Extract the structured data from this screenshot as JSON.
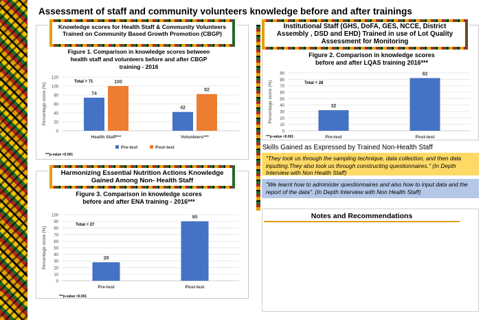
{
  "page": {
    "title": "Assessment of staff and community volunteers knowledge before and after trainings"
  },
  "cbgp": {
    "header": "Knowledge scores for Health Staff & Community Volunteers Trained on Community Based Growth Promotion (CBGP)"
  },
  "lqas": {
    "header": "Institutional Staff (GHS, DoFA, GES, NCCE, District Assembly , DSD and EHD)  Trained in use of Lot Quality Assessment for Monitoring"
  },
  "ena": {
    "header": "Harmonizing Essential Nutrition Actions Knowledge Gained Among Non- Health Staff"
  },
  "skills": {
    "title": "Skills Gained as Expressed by Trained Non-Health Staff",
    "quote1": "\"They took us through the sampling technique, data collection, and then data inputting.They also took us through constructing questionnaires.\" (In Depth Interview with Non Health Staff)",
    "quote2": "\"We learnt how to administer questionnaires and also how to input data and the report of the data\". (In Depth Interview with Non Health Staff)"
  },
  "notes": {
    "title": "Notes and Recommendations"
  },
  "colors": {
    "pre": "#4472c4",
    "post": "#ed7d31",
    "gold": "#e0a000"
  },
  "chart_data": [
    {
      "type": "bar",
      "title": "Figure 1. Comparison in knowledge scores between health staff and volunteers before and after CBGP training - 2016",
      "title_lines": [
        "Figure 1. Comparison in knowledge scores between",
        "health staff and volunteers before and after CBGP",
        "training - 2016"
      ],
      "ylabel": "Percentage score (%)",
      "ylim": [
        0,
        120
      ],
      "yticks": [
        0,
        20,
        40,
        60,
        80,
        100,
        120
      ],
      "categories": [
        "Health Staff***",
        "Volunteers***"
      ],
      "series": [
        {
          "name": "Pre-test",
          "values": [
            74,
            42
          ]
        },
        {
          "name": "Post-test",
          "values": [
            100,
            82
          ]
        }
      ],
      "annotation": "Total = 71",
      "footnote": "***p-value <0.001",
      "legend": "bottom",
      "grid": true
    },
    {
      "type": "bar",
      "title": "Figure 2. Comparison in knowledge scores before and after LQAS training 2016***",
      "title_lines": [
        "Figure 2. Comparison in knowledge scores",
        "before and after LQAS training 2016***"
      ],
      "ylabel": "Percentage score (%)",
      "ylim": [
        0,
        90
      ],
      "yticks": [
        0,
        10,
        20,
        30,
        40,
        50,
        60,
        70,
        80,
        90
      ],
      "categories": [
        "Pre-test",
        "Post-test"
      ],
      "values": [
        32,
        82
      ],
      "annotation": "Total = 28",
      "footnote": "***p-value <0.001",
      "grid": true
    },
    {
      "type": "bar",
      "title": "Figure 3. Comparison in knowledge scores before and after ENA training - 2016***",
      "title_lines": [
        "Figure 3. Comparison in knowledge scores",
        "before and after ENA training - 2016***"
      ],
      "ylabel": "Percentage score (%)",
      "ylim": [
        0,
        100
      ],
      "yticks": [
        0,
        10,
        20,
        30,
        40,
        50,
        60,
        70,
        80,
        90,
        100
      ],
      "categories": [
        "Pre-test",
        "Post-test"
      ],
      "values": [
        28,
        90
      ],
      "annotation": "Total = 27",
      "footnote": "***p-value <0.001",
      "grid": true
    }
  ]
}
